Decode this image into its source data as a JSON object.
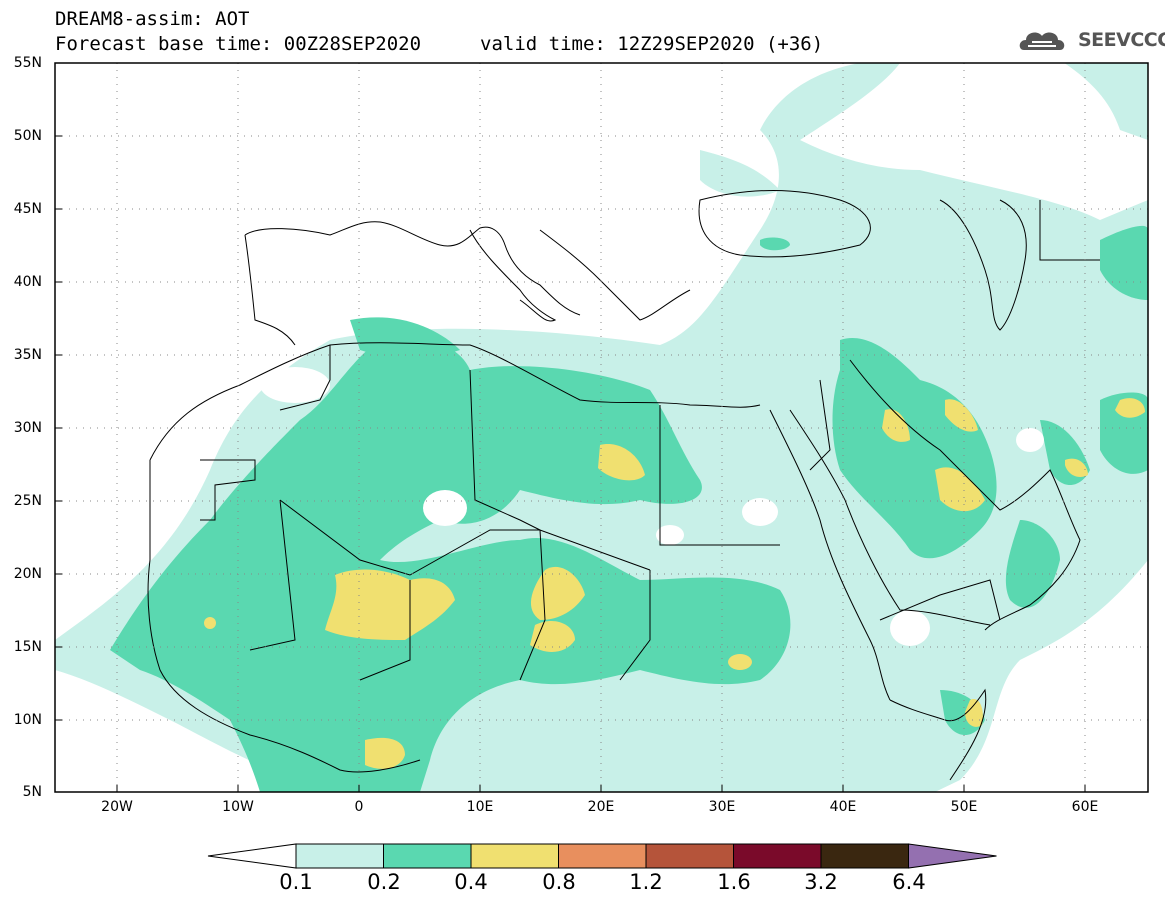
{
  "header": {
    "title_line1": "DREAM8-assim: AOT",
    "title_line2": "Forecast base time: 00Z28SEP2020",
    "valid_time": "valid time: 12Z29SEP2020 (+36)",
    "logo_text": "SEEVCCC"
  },
  "map": {
    "lat_labels": [
      "55N",
      "50N",
      "45N",
      "40N",
      "35N",
      "30N",
      "25N",
      "20N",
      "15N",
      "10N",
      "5N"
    ],
    "lon_labels": [
      "20W",
      "10W",
      "0",
      "10E",
      "20E",
      "30E",
      "40E",
      "50E",
      "60E"
    ],
    "lat_range": [
      5,
      55
    ],
    "lon_range": [
      -25,
      65
    ],
    "contour_colors": {
      "c01": "#c8f0e8",
      "c02": "#5ad8b0",
      "c04": "#f0e070",
      "c08": "#e88f5e"
    }
  },
  "colorbar": {
    "labels": [
      "0.1",
      "0.2",
      "0.4",
      "0.8",
      "1.2",
      "1.6",
      "3.2",
      "6.4"
    ],
    "colors": [
      "#ffffff",
      "#c8f0e8",
      "#5ad8b0",
      "#f0e070",
      "#e88f5e",
      "#b5543a",
      "#7a0a2a",
      "#3a2710",
      "#9470b0"
    ]
  }
}
